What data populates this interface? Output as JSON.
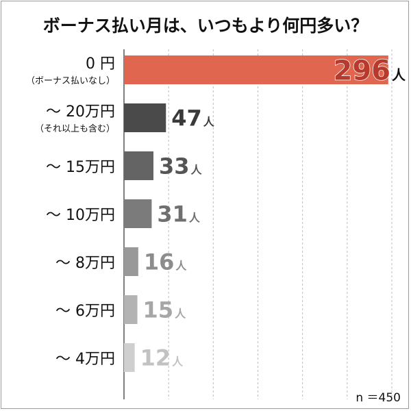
{
  "chart_data": {
    "type": "bar",
    "orientation": "horizontal",
    "title": "ボーナス払い月は、いつもより何円多い？",
    "categories": [
      "0 円",
      "〜 20万円",
      "〜 15万円",
      "〜 10万円",
      "〜 8万円",
      "〜 6万円",
      "〜 4万円"
    ],
    "category_notes": [
      "（ボーナス払いなし）",
      "（それ以上も含む）",
      "",
      "",
      "",
      "",
      ""
    ],
    "values": [
      296,
      47,
      33,
      31,
      16,
      15,
      12
    ],
    "value_unit": "人",
    "n_label": "n ＝450",
    "xlim": [
      0,
      300
    ],
    "grid": true,
    "colors": [
      "#e06650",
      "#4a4a4a",
      "#646464",
      "#7b7b7b",
      "#999999",
      "#b3b3b3",
      "#cfcfcf"
    ],
    "label_colors": [
      "#b83a2d",
      "#3a3a3a",
      "#555555",
      "#6f6f6f",
      "#8c8c8c",
      "#a6a6a6",
      "#c2c2c2"
    ]
  }
}
